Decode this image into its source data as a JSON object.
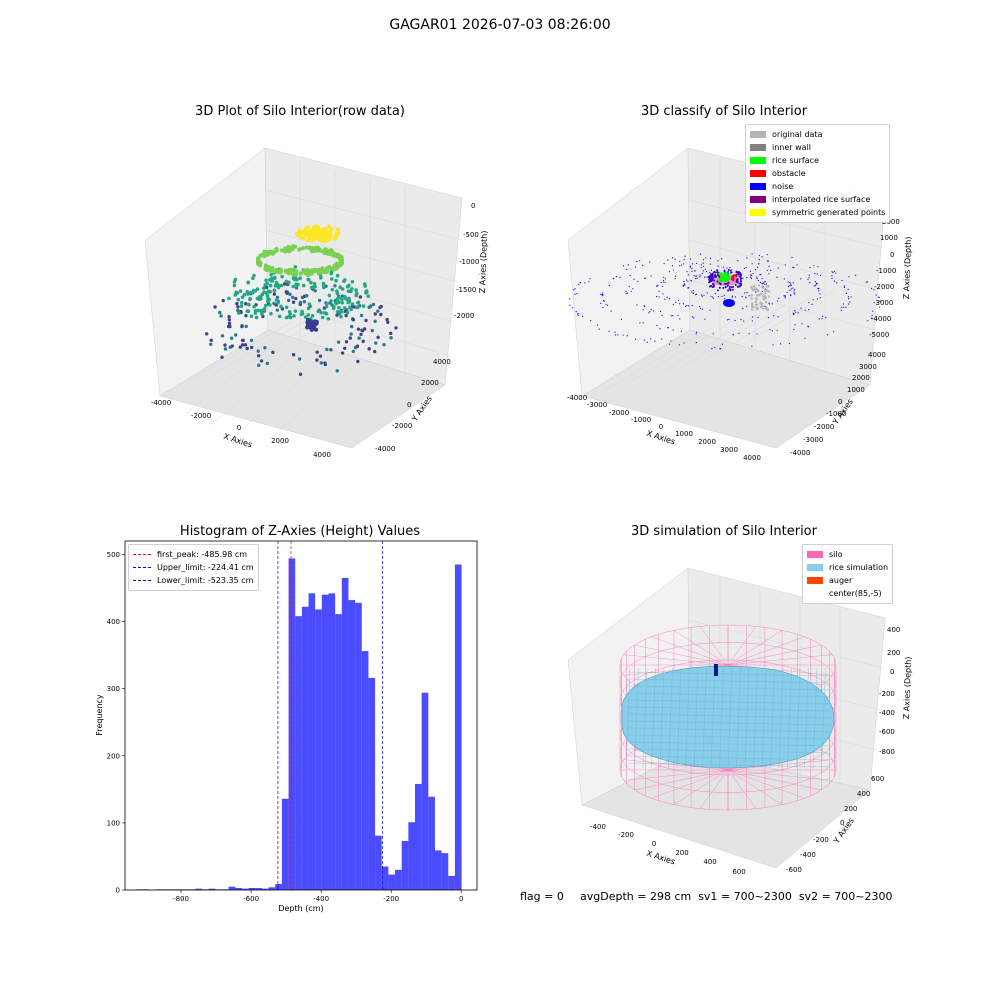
{
  "suptitle": "GAGAR01 2026-07-03 08:26:00",
  "panels": {
    "raw": {
      "title": "3D Plot of Silo Interior(row data)",
      "xlabel": "X Axies",
      "ylabel": "Y Axies",
      "zlabel": "Z Axies (Depth)",
      "xticks": [
        "-4000",
        "-2000",
        "0",
        "2000",
        "4000"
      ],
      "yticks": [
        "-4000",
        "-2000",
        "0",
        "2000",
        "4000"
      ],
      "zticks": [
        "0",
        "-500",
        "-1000",
        "-1500",
        "-2000"
      ]
    },
    "classify": {
      "title": "3D classify of Silo Interior",
      "xlabel": "X Axies",
      "ylabel": "Y Axies",
      "zlabel": "Z Axies (Depth)",
      "xticks": [
        "-4000",
        "-3000",
        "-2000",
        "-1000",
        "0",
        "1000",
        "2000",
        "3000",
        "4000"
      ],
      "yticks": [
        "-4000",
        "-3000",
        "-2000",
        "-1000",
        "0",
        "1000",
        "2000",
        "3000",
        "4000"
      ],
      "zticks": [
        "2000",
        "1000",
        "0",
        "-1000",
        "-2000",
        "-3000",
        "-4000",
        "-5000"
      ],
      "legend": [
        {
          "label": "original data",
          "color": "#b4b4b4"
        },
        {
          "label": "inner wall",
          "color": "#808080"
        },
        {
          "label": "rice surface",
          "color": "#00ff00"
        },
        {
          "label": "obstacle",
          "color": "#ff0000"
        },
        {
          "label": "noise",
          "color": "#0000ff"
        },
        {
          "label": "interpolated rice surface",
          "color": "#800080"
        },
        {
          "label": "symmetric generated points",
          "color": "#ffff00"
        }
      ]
    },
    "simulation": {
      "title": "3D simulation of Silo Interior",
      "xlabel": "X Axies",
      "ylabel": "Y Axies",
      "zlabel": "Z Axies (Depth)",
      "xticks": [
        "-400",
        "-200",
        "0",
        "200",
        "400",
        "600"
      ],
      "yticks": [
        "-600",
        "-400",
        "-200",
        "0",
        "200",
        "400",
        "600"
      ],
      "zticks": [
        "400",
        "200",
        "0",
        "-200",
        "-400",
        "-600",
        "-800"
      ],
      "legend": [
        {
          "label": "silo",
          "color": "#ff69b4"
        },
        {
          "label": "rice simulation",
          "color": "#87ceeb"
        },
        {
          "label": "auger",
          "color": "#ff4500"
        },
        {
          "label": "center(85,-5)",
          "color": "#ffffff"
        }
      ]
    }
  },
  "footer": {
    "flag": "flag = 0",
    "stats": "avgDepth = 298 cm  sv1 = 700~2300  sv2 = 700~2300"
  },
  "chart_data": [
    {
      "type": "bar",
      "title": "Histogram of Z-Axies (Height) Values",
      "xlabel": "Depth (cm)",
      "ylabel": "Frequency",
      "xlim": [
        -960,
        45
      ],
      "ylim": [
        0,
        520
      ],
      "xticks": [
        -800,
        -600,
        -400,
        -200,
        0
      ],
      "yticks": [
        0,
        100,
        200,
        300,
        400,
        500
      ],
      "bar_color": "#0000ff",
      "bar_width": 19,
      "bins": [
        {
          "x": -930,
          "y": 1
        },
        {
          "x": -911,
          "y": 1
        },
        {
          "x": -873,
          "y": 1
        },
        {
          "x": -854,
          "y": 1
        },
        {
          "x": -835,
          "y": 1
        },
        {
          "x": -816,
          "y": 1
        },
        {
          "x": -797,
          "y": 1
        },
        {
          "x": -778,
          "y": 1
        },
        {
          "x": -759,
          "y": 2
        },
        {
          "x": -740,
          "y": 1
        },
        {
          "x": -721,
          "y": 2
        },
        {
          "x": -702,
          "y": 1
        },
        {
          "x": -683,
          "y": 1
        },
        {
          "x": -664,
          "y": 5
        },
        {
          "x": -645,
          "y": 3
        },
        {
          "x": -626,
          "y": 2
        },
        {
          "x": -607,
          "y": 3
        },
        {
          "x": -588,
          "y": 3
        },
        {
          "x": -569,
          "y": 2
        },
        {
          "x": -550,
          "y": 4
        },
        {
          "x": -531,
          "y": 9
        },
        {
          "x": -512,
          "y": 136
        },
        {
          "x": -493,
          "y": 494
        },
        {
          "x": -474,
          "y": 408
        },
        {
          "x": -455,
          "y": 422
        },
        {
          "x": -436,
          "y": 442
        },
        {
          "x": -417,
          "y": 418
        },
        {
          "x": -398,
          "y": 440
        },
        {
          "x": -379,
          "y": 442
        },
        {
          "x": -360,
          "y": 411
        },
        {
          "x": -341,
          "y": 465
        },
        {
          "x": -322,
          "y": 432
        },
        {
          "x": -303,
          "y": 428
        },
        {
          "x": -284,
          "y": 356
        },
        {
          "x": -265,
          "y": 316
        },
        {
          "x": -246,
          "y": 81
        },
        {
          "x": -227,
          "y": 35
        },
        {
          "x": -208,
          "y": 23
        },
        {
          "x": -189,
          "y": 30
        },
        {
          "x": -170,
          "y": 73
        },
        {
          "x": -151,
          "y": 101
        },
        {
          "x": -132,
          "y": 158
        },
        {
          "x": -113,
          "y": 294
        },
        {
          "x": -94,
          "y": 139
        },
        {
          "x": -75,
          "y": 59
        },
        {
          "x": -56,
          "y": 55
        },
        {
          "x": -37,
          "y": 21
        },
        {
          "x": -18,
          "y": 485
        }
      ],
      "lines": [
        {
          "label": "first_peak: -485.98 cm",
          "x": -485.98,
          "color": "#ff0000"
        },
        {
          "label": "Upper_limit: -224.41 cm",
          "x": -224.41,
          "color": "#0000ff"
        },
        {
          "label": "Lower_limit: -523.35 cm",
          "x": -523.35,
          "color": "#0000ff"
        }
      ]
    }
  ]
}
